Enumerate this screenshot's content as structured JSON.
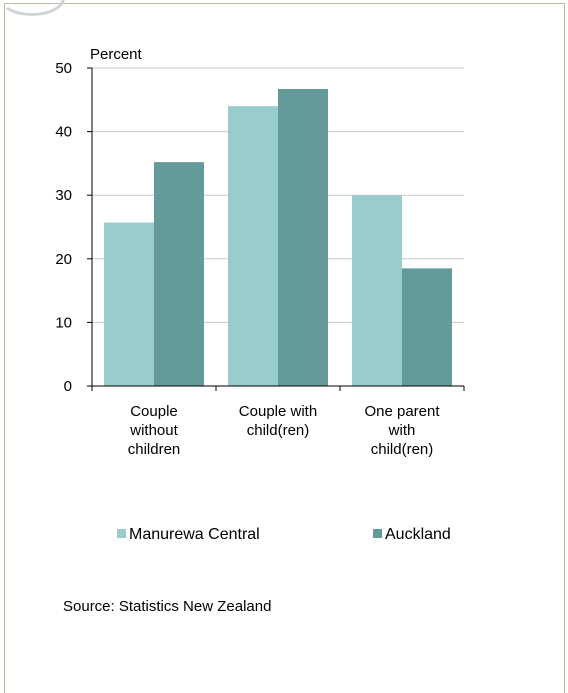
{
  "chart_data": {
    "type": "bar",
    "ylabel": "Percent",
    "ylim": [
      0,
      50
    ],
    "yticks": [
      "0",
      "10",
      "20",
      "30",
      "40",
      "50"
    ],
    "categories": [
      [
        "Couple",
        "without",
        "children"
      ],
      [
        "Couple with",
        "child(ren)"
      ],
      [
        "One parent",
        "with",
        "child(ren)"
      ]
    ],
    "series": [
      {
        "name": "Manurewa Central",
        "color": "#99cdcd",
        "values": [
          25.7,
          44,
          30
        ]
      },
      {
        "name": "Auckland",
        "color": "#649a99",
        "values": [
          35.2,
          46.7,
          18.5
        ]
      }
    ],
    "grid": true,
    "legend_position": "bottom",
    "source": "Source: Statistics New Zealand"
  }
}
